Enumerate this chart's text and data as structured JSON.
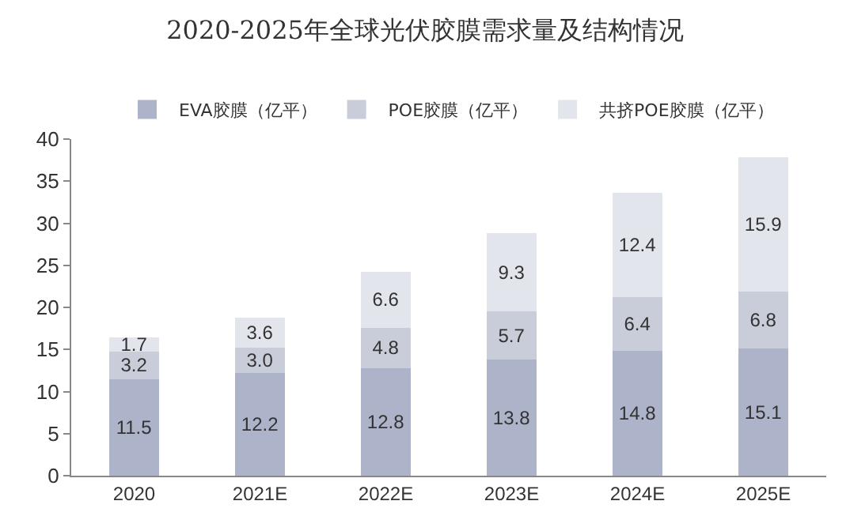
{
  "chart_data": {
    "type": "bar",
    "stacked": true,
    "title": "2020-2025年全球光伏胶膜需求量及结构情况",
    "categories": [
      "2020",
      "2021E",
      "2022E",
      "2023E",
      "2024E",
      "2025E"
    ],
    "series": [
      {
        "name": "EVA胶膜（亿平）",
        "color": "#adb3c9",
        "values": [
          11.5,
          12.2,
          12.8,
          13.8,
          14.8,
          15.1
        ],
        "value_labels": [
          "11.5",
          "12.2",
          "12.8",
          "13.8",
          "14.8",
          "15.1"
        ]
      },
      {
        "name": "POE胶膜（亿平）",
        "color": "#c9ccd9",
        "values": [
          3.2,
          3.0,
          4.8,
          5.7,
          6.4,
          6.8
        ],
        "value_labels": [
          "3.2",
          "3.0",
          "4.8",
          "5.7",
          "6.4",
          "6.8"
        ]
      },
      {
        "name": "共挤POE胶膜（亿平）",
        "color": "#e3e5ec",
        "values": [
          1.7,
          3.6,
          6.6,
          9.3,
          12.4,
          15.9
        ],
        "value_labels": [
          "1.7",
          "3.6",
          "6.6",
          "9.3",
          "12.4",
          "15.9"
        ]
      }
    ],
    "ylim": [
      0,
      40
    ],
    "yticks": [
      0,
      5,
      10,
      15,
      20,
      25,
      30,
      35,
      40
    ],
    "grid": false,
    "legend": "top"
  }
}
